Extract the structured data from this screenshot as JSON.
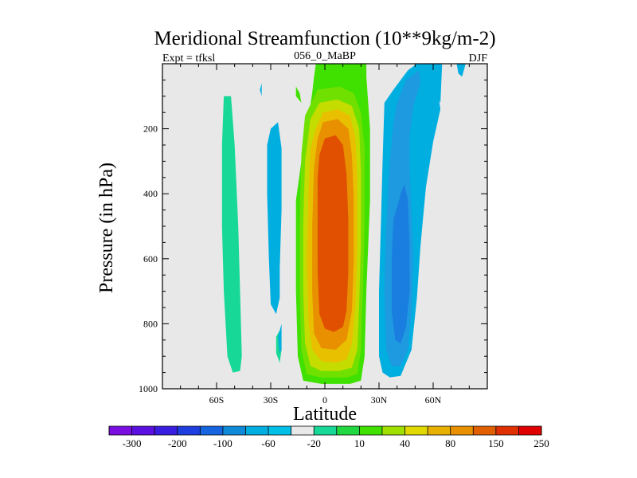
{
  "chart_data": {
    "type": "heatmap",
    "title": "Meridional Streamfunction (10**9kg/m-2)",
    "left_label": "Expt = tfksl",
    "center_label": "056_0_MaBP",
    "right_label": "DJF",
    "xlabel": "Latitude",
    "ylabel": "Pressure (in hPa)",
    "xlim": [
      -90,
      90
    ],
    "ylim": [
      1000,
      0
    ],
    "x_ticks": [
      {
        "value": -60,
        "label": "60S"
      },
      {
        "value": -30,
        "label": "30S"
      },
      {
        "value": 0,
        "label": "0"
      },
      {
        "value": 30,
        "label": "30N"
      },
      {
        "value": 60,
        "label": "60N"
      }
    ],
    "y_ticks": [
      {
        "value": 200,
        "label": "200"
      },
      {
        "value": 400,
        "label": "400"
      },
      {
        "value": 600,
        "label": "600"
      },
      {
        "value": 800,
        "label": "800"
      },
      {
        "value": 1000,
        "label": "1000"
      }
    ],
    "colorbar": {
      "labels": [
        "-300",
        "-200",
        "-100",
        "-60",
        "-20",
        "10",
        "40",
        "80",
        "150",
        "250"
      ],
      "colors": [
        "#7a0ee0",
        "#5a10e0",
        "#3a1ee0",
        "#1f3ee0",
        "#1665e0",
        "#0f8ad8",
        "#00aee0",
        "#00c0e8",
        "#e8e8e8",
        "#18d898",
        "#22d840",
        "#40e000",
        "#a0e000",
        "#e0d800",
        "#e8b000",
        "#e89000",
        "#e06000",
        "#e03000",
        "#e00000"
      ]
    },
    "contours": [
      {
        "level": "10..20",
        "color": "#18d898",
        "polygons": [
          [
            [
              -52,
              100
            ],
            [
              -50,
              250
            ],
            [
              -48,
              500
            ],
            [
              -47,
              700
            ],
            [
              -46,
              900
            ],
            [
              -47,
              945
            ],
            [
              -51,
              950
            ],
            [
              -54,
              900
            ],
            [
              -56,
              700
            ],
            [
              -57,
              500
            ],
            [
              -57,
              250
            ],
            [
              -56,
              100
            ]
          ],
          [
            [
              -25,
              820
            ],
            [
              -24,
              880
            ],
            [
              -25,
              920
            ],
            [
              -27,
              890
            ],
            [
              -27,
              840
            ]
          ]
        ]
      },
      {
        "level": "-40..-20",
        "color": "#00aee0",
        "polygons": [
          [
            [
              -30,
              200
            ],
            [
              -26,
              180
            ],
            [
              -24,
              260
            ],
            [
              -24,
              450
            ],
            [
              -25,
              630
            ],
            [
              -25,
              720
            ],
            [
              -27,
              770
            ],
            [
              -30,
              740
            ],
            [
              -31,
              600
            ],
            [
              -32,
              400
            ],
            [
              -32,
              250
            ]
          ],
          [
            [
              -24,
              800
            ],
            [
              -24,
              880
            ],
            [
              -25,
              890
            ],
            [
              -26,
              840
            ]
          ],
          [
            [
              33,
              120
            ],
            [
              38,
              80
            ],
            [
              46,
              20
            ],
            [
              51,
              0
            ],
            [
              60,
              0
            ],
            [
              62,
              60
            ],
            [
              64,
              140
            ],
            [
              60,
              240
            ],
            [
              56,
              380
            ],
            [
              53,
              560
            ],
            [
              51,
              720
            ],
            [
              48,
              880
            ],
            [
              42,
              960
            ],
            [
              36,
              965
            ],
            [
              32,
              950
            ],
            [
              30,
              900
            ],
            [
              30,
              700
            ],
            [
              31,
              500
            ],
            [
              32,
              300
            ]
          ],
          [
            [
              60,
              0
            ],
            [
              65,
              0
            ],
            [
              64,
              120
            ],
            [
              61,
              90
            ]
          ],
          [
            [
              73,
              0
            ],
            [
              78,
              0
            ],
            [
              76,
              40
            ],
            [
              74,
              30
            ]
          ],
          [
            [
              -35,
              60
            ],
            [
              -35,
              80
            ],
            [
              -35,
              100
            ],
            [
              -36,
              80
            ]
          ]
        ]
      },
      {
        "level": "-60..-40",
        "color": "#1e9ae0",
        "polygons": [
          [
            [
              40,
              120
            ],
            [
              45,
              50
            ],
            [
              52,
              20
            ],
            [
              53,
              60
            ],
            [
              49,
              130
            ],
            [
              47,
              220
            ],
            [
              47,
              330
            ],
            [
              48,
              460
            ],
            [
              49,
              600
            ],
            [
              48,
              760
            ],
            [
              46,
              880
            ],
            [
              42,
              930
            ],
            [
              37,
              930
            ],
            [
              34,
              880
            ],
            [
              33,
              700
            ],
            [
              34,
              500
            ],
            [
              36,
              300
            ],
            [
              38,
              180
            ]
          ]
        ]
      },
      {
        "level": "-100..-60",
        "color": "#1a7ee0",
        "polygons": [
          [
            [
              42,
              400
            ],
            [
              44,
              370
            ],
            [
              46,
              420
            ],
            [
              47,
              560
            ],
            [
              47,
              700
            ],
            [
              45,
              810
            ],
            [
              42,
              860
            ],
            [
              39,
              850
            ],
            [
              37,
              760
            ],
            [
              37,
              600
            ],
            [
              38,
              480
            ]
          ]
        ]
      },
      {
        "level": "20..40",
        "color": "#40e000",
        "polygons": [
          [
            [
              -5,
              0
            ],
            [
              23,
              0
            ],
            [
              23,
              40
            ],
            [
              25,
              200
            ],
            [
              25,
              420
            ],
            [
              23,
              700
            ],
            [
              22,
              900
            ],
            [
              20,
              975
            ],
            [
              14,
              985
            ],
            [
              -2,
              985
            ],
            [
              -12,
              975
            ],
            [
              -15,
              900
            ],
            [
              -16,
              700
            ],
            [
              -16,
              420
            ],
            [
              -13,
              300
            ],
            [
              -10,
              200
            ],
            [
              -7,
              90
            ],
            [
              -6,
              40
            ]
          ],
          [
            [
              -14,
              90
            ],
            [
              -16,
              70
            ],
            [
              -16,
              100
            ],
            [
              -13,
              120
            ]
          ]
        ]
      },
      {
        "level": "40..60",
        "color": "#70e000",
        "polygons": [
          [
            [
              -11,
              160
            ],
            [
              -4,
              80
            ],
            [
              8,
              70
            ],
            [
              16,
              90
            ],
            [
              20,
              150
            ],
            [
              22,
              260
            ],
            [
              22,
              500
            ],
            [
              21,
              700
            ],
            [
              20,
              880
            ],
            [
              18,
              955
            ],
            [
              12,
              965
            ],
            [
              -2,
              965
            ],
            [
              -10,
              955
            ],
            [
              -13,
              880
            ],
            [
              -14,
              700
            ],
            [
              -14,
              500
            ],
            [
              -13,
              280
            ]
          ]
        ]
      },
      {
        "level": "60..80",
        "color": "#c4dc00",
        "polygons": [
          [
            [
              -8,
              170
            ],
            [
              -3,
              120
            ],
            [
              7,
              110
            ],
            [
              15,
              130
            ],
            [
              19,
              200
            ],
            [
              20,
              330
            ],
            [
              20,
              550
            ],
            [
              19,
              740
            ],
            [
              18,
              880
            ],
            [
              15,
              935
            ],
            [
              8,
              945
            ],
            [
              -2,
              945
            ],
            [
              -8,
              930
            ],
            [
              -11,
              860
            ],
            [
              -12,
              700
            ],
            [
              -12,
              500
            ],
            [
              -11,
              300
            ]
          ]
        ]
      },
      {
        "level": "80..100",
        "color": "#e8c000",
        "polygons": [
          [
            [
              -5,
              200
            ],
            [
              -1,
              150
            ],
            [
              7,
              140
            ],
            [
              14,
              160
            ],
            [
              17,
              230
            ],
            [
              18,
              360
            ],
            [
              18,
              560
            ],
            [
              17,
              740
            ],
            [
              15,
              860
            ],
            [
              12,
              910
            ],
            [
              6,
              920
            ],
            [
              -2,
              915
            ],
            [
              -7,
              880
            ],
            [
              -9,
              800
            ],
            [
              -10,
              600
            ],
            [
              -9,
              380
            ],
            [
              -8,
              260
            ]
          ]
        ]
      },
      {
        "level": "100..150",
        "color": "#e89000",
        "polygons": [
          [
            [
              -4,
              230
            ],
            [
              -1,
              180
            ],
            [
              7,
              170
            ],
            [
              13,
              200
            ],
            [
              15,
              280
            ],
            [
              16,
              420
            ],
            [
              16,
              600
            ],
            [
              15,
              760
            ],
            [
              12,
              850
            ],
            [
              6,
              880
            ],
            [
              -2,
              875
            ],
            [
              -6,
              830
            ],
            [
              -7,
              700
            ],
            [
              -7,
              500
            ],
            [
              -6,
              320
            ]
          ]
        ]
      },
      {
        "level": "150..200",
        "color": "#e05000",
        "polygons": [
          [
            [
              -3,
              280
            ],
            [
              0,
              230
            ],
            [
              6,
              220
            ],
            [
              10,
              250
            ],
            [
              12,
              340
            ],
            [
              13,
              480
            ],
            [
              13,
              640
            ],
            [
              12,
              760
            ],
            [
              10,
              810
            ],
            [
              5,
              825
            ],
            [
              0,
              815
            ],
            [
              -3,
              770
            ],
            [
              -4,
              640
            ],
            [
              -4,
              460
            ],
            [
              -4,
              350
            ]
          ]
        ]
      }
    ]
  }
}
